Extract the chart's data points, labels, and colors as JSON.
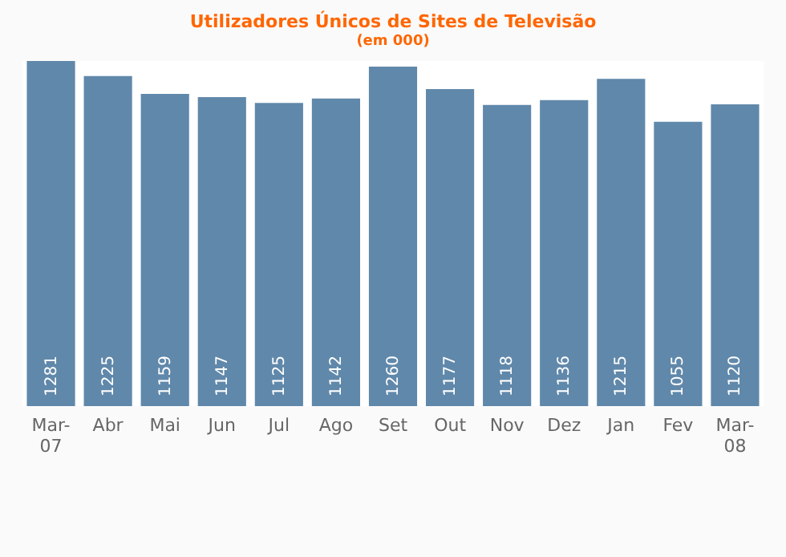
{
  "chart_data": {
    "type": "bar",
    "title": "Utilizadores Únicos de Sites de Televisão",
    "subtitle": "(em 000)",
    "categories": [
      "Mar-07",
      "Abr",
      "Mai",
      "Jun",
      "Jul",
      "Ago",
      "Set",
      "Out",
      "Nov",
      "Dez",
      "Jan",
      "Fev",
      "Mar-08"
    ],
    "values": [
      1281,
      1225,
      1159,
      1147,
      1125,
      1142,
      1260,
      1177,
      1118,
      1136,
      1215,
      1055,
      1120
    ],
    "color": "#6088aa",
    "data_labels": true
  }
}
